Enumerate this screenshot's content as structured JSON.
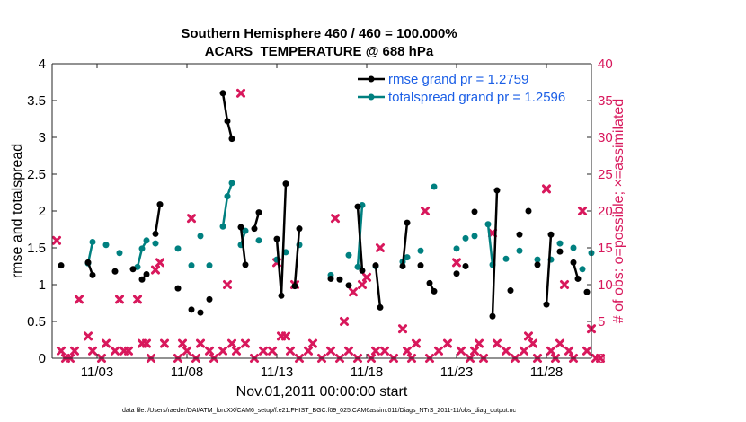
{
  "chart_data": {
    "type": "line",
    "title": "Southern Hemisphere 460 / 460 = 100.000%",
    "subtitle": "ACARS_TEMPERATURE @ 688 hPa",
    "xlabel": "Nov.01,2011 00:00:00 start",
    "ylabel_left": "rmse and totalspread",
    "ylabel_right": "# of obs: o=possible; ×=assimilated",
    "footer": "data file: /Users/raeder/DAI/ATM_forcXX/CAM6_setup/f.e21.FHIST_BGC.f09_025.CAM6assim.011/Diags_NTrS_2011-11/obs_diag_output.nc",
    "xlim": [
      0.5,
      30.5
    ],
    "ylim_left": [
      0,
      4
    ],
    "ylim_right": [
      0,
      40
    ],
    "x_ticks": [
      {
        "x": 3,
        "label": "11/03"
      },
      {
        "x": 8,
        "label": "11/08"
      },
      {
        "x": 13,
        "label": "11/13"
      },
      {
        "x": 18,
        "label": "11/18"
      },
      {
        "x": 23,
        "label": "11/23"
      },
      {
        "x": 28,
        "label": "11/28"
      }
    ],
    "y_ticks_left": [
      "0",
      "0.5",
      "1",
      "1.5",
      "2",
      "2.5",
      "3",
      "3.5",
      "4"
    ],
    "y_ticks_right": [
      "0",
      "5",
      "10",
      "15",
      "20",
      "25",
      "30",
      "35",
      "40"
    ],
    "colors": {
      "rmse": "#000000",
      "spread": "#008080",
      "obs": "#d8185c",
      "legend_text": "#1a5ee6"
    },
    "legend": [
      {
        "name": "rmse grand pr = 1.2759",
        "series": "rmse"
      },
      {
        "name": "totalspread grand pr = 1.2596",
        "series": "spread"
      }
    ],
    "legend_position": "top-right",
    "rmse": [
      [
        1,
        1.26
      ],
      [
        2.5,
        1.3
      ],
      [
        2.75,
        1.13
      ],
      [
        4,
        1.18
      ],
      [
        5,
        1.21
      ],
      [
        5.5,
        1.07
      ],
      [
        5.75,
        1.14
      ],
      [
        6.25,
        1.69
      ],
      [
        6.5,
        2.09
      ],
      [
        7.5,
        0.95
      ],
      [
        8.25,
        0.66
      ],
      [
        8.75,
        0.62
      ],
      [
        9.25,
        0.8
      ],
      [
        10,
        3.6
      ],
      [
        10.25,
        3.22
      ],
      [
        10.5,
        2.98
      ],
      [
        11,
        1.78
      ],
      [
        11.25,
        1.27
      ],
      [
        11.75,
        1.76
      ],
      [
        12,
        1.98
      ],
      [
        13,
        1.62
      ],
      [
        13.25,
        0.85
      ],
      [
        13.5,
        2.37
      ],
      [
        14,
        0.98
      ],
      [
        14.25,
        1.76
      ],
      [
        16,
        1.08
      ],
      [
        16.5,
        1.07
      ],
      [
        17,
        0.99
      ],
      [
        17.5,
        2.06
      ],
      [
        17.75,
        1.19
      ],
      [
        18.5,
        1.26
      ],
      [
        18.75,
        0.69
      ],
      [
        20,
        1.25
      ],
      [
        20.25,
        1.84
      ],
      [
        21,
        1.26
      ],
      [
        21.5,
        1.02
      ],
      [
        21.75,
        0.91
      ],
      [
        23,
        1.15
      ],
      [
        23.5,
        1.25
      ],
      [
        24,
        1.99
      ],
      [
        25,
        0.57
      ],
      [
        25.25,
        2.28
      ],
      [
        26,
        0.92
      ],
      [
        26.5,
        1.68
      ],
      [
        27,
        2.0
      ],
      [
        27.5,
        1.27
      ],
      [
        28,
        0.73
      ],
      [
        28.25,
        1.68
      ],
      [
        28.75,
        1.45
      ],
      [
        29.5,
        1.3
      ],
      [
        29.75,
        1.08
      ],
      [
        30.25,
        0.9
      ]
    ],
    "spread": [
      [
        2.5,
        1.29
      ],
      [
        2.75,
        1.58
      ],
      [
        3.5,
        1.54
      ],
      [
        4.25,
        1.43
      ],
      [
        5.25,
        1.24
      ],
      [
        5.5,
        1.49
      ],
      [
        5.75,
        1.6
      ],
      [
        6.25,
        1.56
      ],
      [
        7.5,
        1.49
      ],
      [
        8.25,
        1.26
      ],
      [
        8.75,
        1.66
      ],
      [
        9.25,
        1.26
      ],
      [
        10,
        1.79
      ],
      [
        10.25,
        2.2
      ],
      [
        10.5,
        2.38
      ],
      [
        11,
        1.54
      ],
      [
        11.25,
        1.73
      ],
      [
        12,
        1.6
      ],
      [
        13,
        1.34
      ],
      [
        13.5,
        1.44
      ],
      [
        14.25,
        1.54
      ],
      [
        16,
        1.13
      ],
      [
        17,
        1.4
      ],
      [
        17.5,
        1.24
      ],
      [
        17.75,
        2.08
      ],
      [
        18.5,
        1.25
      ],
      [
        20,
        1.31
      ],
      [
        20.25,
        1.37
      ],
      [
        21,
        1.46
      ],
      [
        21.75,
        2.33
      ],
      [
        23,
        1.49
      ],
      [
        23.5,
        1.63
      ],
      [
        24,
        1.66
      ],
      [
        24.75,
        1.82
      ],
      [
        25,
        1.27
      ],
      [
        25.75,
        1.35
      ],
      [
        26.5,
        1.46
      ],
      [
        27.5,
        1.34
      ],
      [
        28.25,
        1.34
      ],
      [
        28.75,
        1.56
      ],
      [
        29.5,
        1.5
      ],
      [
        30,
        1.21
      ],
      [
        30.5,
        1.43
      ]
    ],
    "obs_assimilated": [
      [
        0.75,
        16
      ],
      [
        1,
        1
      ],
      [
        1.25,
        0
      ],
      [
        1.5,
        0
      ],
      [
        1.75,
        1
      ],
      [
        2,
        8
      ],
      [
        2.5,
        3
      ],
      [
        2.75,
        1
      ],
      [
        3.25,
        0
      ],
      [
        3.5,
        2
      ],
      [
        4,
        1
      ],
      [
        4.25,
        8
      ],
      [
        4.5,
        1
      ],
      [
        4.75,
        1
      ],
      [
        5.25,
        8
      ],
      [
        5.5,
        2
      ],
      [
        5.75,
        2
      ],
      [
        6,
        0
      ],
      [
        6.25,
        12
      ],
      [
        6.5,
        13
      ],
      [
        6.75,
        2
      ],
      [
        7.5,
        0
      ],
      [
        7.75,
        2
      ],
      [
        8,
        1
      ],
      [
        8.25,
        19
      ],
      [
        8.5,
        0
      ],
      [
        8.75,
        2
      ],
      [
        9.25,
        1
      ],
      [
        9.5,
        0
      ],
      [
        10,
        1
      ],
      [
        10.25,
        10
      ],
      [
        10.5,
        2
      ],
      [
        10.75,
        1
      ],
      [
        11,
        36
      ],
      [
        11.25,
        2
      ],
      [
        11.75,
        0
      ],
      [
        12.25,
        1
      ],
      [
        12.75,
        1
      ],
      [
        13,
        13
      ],
      [
        13.25,
        3
      ],
      [
        13.5,
        3
      ],
      [
        13.75,
        1
      ],
      [
        14,
        10
      ],
      [
        14.25,
        0
      ],
      [
        14.75,
        1
      ],
      [
        15,
        2
      ],
      [
        15.5,
        0
      ],
      [
        16,
        1
      ],
      [
        16.25,
        19
      ],
      [
        16.5,
        0
      ],
      [
        16.75,
        5
      ],
      [
        17,
        1
      ],
      [
        17.25,
        9
      ],
      [
        17.5,
        0
      ],
      [
        17.75,
        10
      ],
      [
        18,
        11
      ],
      [
        18.25,
        0
      ],
      [
        18.5,
        1
      ],
      [
        18.75,
        15
      ],
      [
        19,
        1
      ],
      [
        19.5,
        0
      ],
      [
        20,
        4
      ],
      [
        20.25,
        1
      ],
      [
        20.5,
        0
      ],
      [
        20.75,
        2
      ],
      [
        21.25,
        20
      ],
      [
        21.5,
        0
      ],
      [
        22,
        1
      ],
      [
        22.5,
        2
      ],
      [
        23,
        13
      ],
      [
        23.25,
        1
      ],
      [
        23.75,
        0
      ],
      [
        24,
        1
      ],
      [
        24.25,
        2
      ],
      [
        24.5,
        0
      ],
      [
        25,
        17
      ],
      [
        25.25,
        2
      ],
      [
        25.75,
        1
      ],
      [
        26.25,
        0
      ],
      [
        26.75,
        1
      ],
      [
        27,
        3
      ],
      [
        27.25,
        2
      ],
      [
        27.5,
        0
      ],
      [
        28,
        23
      ],
      [
        28.25,
        1
      ],
      [
        28.5,
        0
      ],
      [
        28.75,
        2
      ],
      [
        29,
        10
      ],
      [
        29.25,
        1
      ],
      [
        29.5,
        0
      ],
      [
        30,
        20
      ],
      [
        30.25,
        1
      ],
      [
        30.5,
        4
      ],
      [
        30.75,
        0
      ],
      [
        31,
        0
      ]
    ]
  }
}
